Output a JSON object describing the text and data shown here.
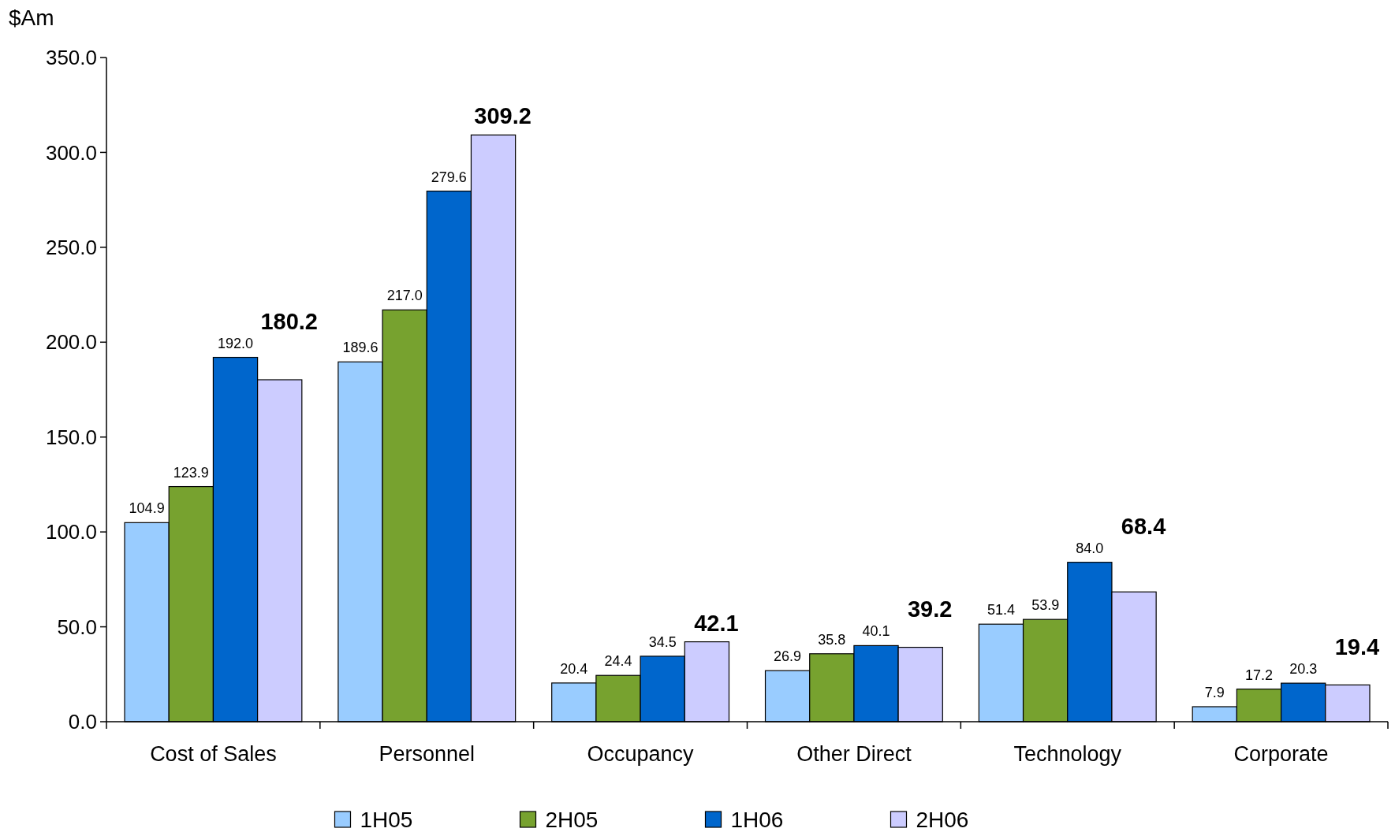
{
  "chart_data": {
    "type": "bar",
    "ylabel": "$Am",
    "categories": [
      "Cost of Sales",
      "Personnel",
      "Occupancy",
      "Other Direct",
      "Technology",
      "Corporate"
    ],
    "series": [
      {
        "name": "1H05",
        "color": "#99ccff",
        "values": [
          104.9,
          189.6,
          20.4,
          26.9,
          51.4,
          7.9
        ],
        "value_labels": [
          "104.9",
          "189.6",
          "20.4",
          "26.9",
          "51.4",
          "7.9"
        ]
      },
      {
        "name": "2H05",
        "color": "#77a22f",
        "values": [
          123.9,
          217.0,
          24.4,
          35.8,
          53.9,
          17.2
        ],
        "value_labels": [
          "123.9",
          "217.0",
          "24.4",
          "35.8",
          "53.9",
          "17.2"
        ]
      },
      {
        "name": "1H06",
        "color": "#0066cc",
        "values": [
          192.0,
          279.6,
          34.5,
          40.1,
          84.0,
          20.3
        ],
        "value_labels": [
          "192.0",
          "279.6",
          "34.5",
          "40.1",
          "84.0",
          "20.3"
        ]
      },
      {
        "name": "2H06",
        "color": "#ccccff",
        "values": [
          180.2,
          309.2,
          42.1,
          39.2,
          68.4,
          19.4
        ],
        "value_labels": [
          "180.2",
          "309.2",
          "42.1",
          "39.2",
          "68.4",
          "19.4"
        ]
      }
    ],
    "ylim": [
      0,
      350
    ],
    "yticks": [
      {
        "value": 0,
        "label": "0.0"
      },
      {
        "value": 50,
        "label": "50.0"
      },
      {
        "value": 100,
        "label": "100.0"
      },
      {
        "value": 150,
        "label": "150.0"
      },
      {
        "value": 200,
        "label": "200.0"
      },
      {
        "value": 250,
        "label": "250.0"
      },
      {
        "value": 300,
        "label": "300.0"
      },
      {
        "value": 350,
        "label": "350.0"
      }
    ],
    "grid": false,
    "legend": "bottom"
  }
}
